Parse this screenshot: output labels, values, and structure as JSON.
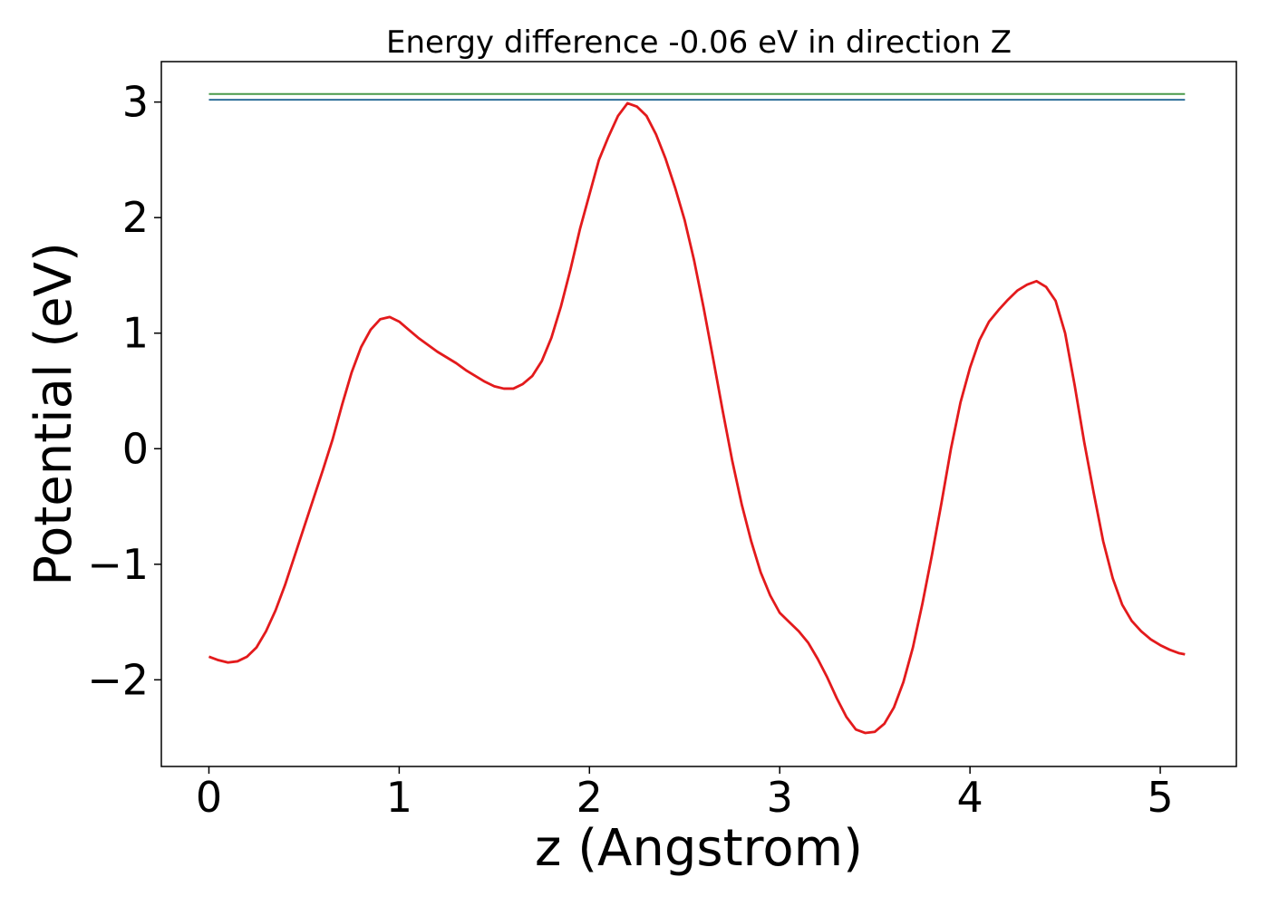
{
  "chart_data": {
    "type": "line",
    "title": "Energy difference -0.06 eV in direction Z",
    "xlabel": "z (Angstrom)",
    "ylabel": "Potential (eV)",
    "xlim": [
      -0.25,
      5.4
    ],
    "ylim": [
      -2.75,
      3.35
    ],
    "xticks": [
      0,
      1,
      2,
      3,
      4,
      5
    ],
    "yticks": [
      -2,
      -1,
      0,
      1,
      2,
      3
    ],
    "ytick_labels": [
      "−2",
      "−1",
      "0",
      "1",
      "2",
      "3"
    ],
    "xtick_labels": [
      "0",
      "1",
      "2",
      "3",
      "4",
      "5"
    ],
    "grid": false,
    "series": [
      {
        "color": "#e31a1c",
        "x": [
          0.0,
          0.05,
          0.1,
          0.15,
          0.2,
          0.25,
          0.3,
          0.35,
          0.4,
          0.45,
          0.5,
          0.55,
          0.6,
          0.65,
          0.7,
          0.75,
          0.8,
          0.85,
          0.9,
          0.95,
          1.0,
          1.05,
          1.1,
          1.15,
          1.2,
          1.25,
          1.3,
          1.35,
          1.4,
          1.45,
          1.5,
          1.55,
          1.6,
          1.65,
          1.7,
          1.75,
          1.8,
          1.85,
          1.9,
          1.95,
          2.0,
          2.05,
          2.1,
          2.15,
          2.2,
          2.25,
          2.3,
          2.35,
          2.4,
          2.45,
          2.5,
          2.55,
          2.6,
          2.65,
          2.7,
          2.75,
          2.8,
          2.85,
          2.9,
          2.95,
          3.0,
          3.05,
          3.1,
          3.15,
          3.2,
          3.25,
          3.3,
          3.35,
          3.4,
          3.45,
          3.5,
          3.55,
          3.6,
          3.65,
          3.7,
          3.75,
          3.8,
          3.85,
          3.9,
          3.95,
          4.0,
          4.05,
          4.1,
          4.15,
          4.2,
          4.25,
          4.3,
          4.35,
          4.4,
          4.45,
          4.5,
          4.55,
          4.6,
          4.65,
          4.7,
          4.75,
          4.8,
          4.85,
          4.9,
          4.95,
          5.0,
          5.05,
          5.1,
          5.13
        ],
        "y": [
          -1.8,
          -1.83,
          -1.85,
          -1.84,
          -1.8,
          -1.72,
          -1.58,
          -1.4,
          -1.18,
          -0.93,
          -0.68,
          -0.43,
          -0.18,
          0.08,
          0.38,
          0.66,
          0.88,
          1.03,
          1.12,
          1.14,
          1.1,
          1.03,
          0.96,
          0.9,
          0.84,
          0.79,
          0.74,
          0.68,
          0.63,
          0.58,
          0.54,
          0.52,
          0.52,
          0.56,
          0.63,
          0.76,
          0.96,
          1.23,
          1.55,
          1.9,
          2.2,
          2.5,
          2.7,
          2.88,
          2.99,
          2.96,
          2.88,
          2.72,
          2.51,
          2.26,
          1.98,
          1.63,
          1.22,
          0.78,
          0.33,
          -0.1,
          -0.48,
          -0.8,
          -1.07,
          -1.27,
          -1.42,
          -1.5,
          -1.58,
          -1.68,
          -1.82,
          -1.98,
          -2.16,
          -2.32,
          -2.43,
          -2.46,
          -2.45,
          -2.38,
          -2.24,
          -2.02,
          -1.72,
          -1.34,
          -0.92,
          -0.47,
          0.0,
          0.4,
          0.7,
          0.94,
          1.1,
          1.2,
          1.29,
          1.37,
          1.42,
          1.45,
          1.4,
          1.28,
          1.0,
          0.55,
          0.06,
          -0.38,
          -0.8,
          -1.12,
          -1.35,
          -1.49,
          -1.58,
          -1.65,
          -1.7,
          -1.74,
          -1.77,
          -1.78
        ]
      },
      {
        "color": "#4a9a4a",
        "x": [
          0.0,
          5.13
        ],
        "y": [
          3.07,
          3.07
        ]
      },
      {
        "color": "#2f6f99",
        "x": [
          0.0,
          5.13
        ],
        "y": [
          3.02,
          3.02
        ]
      }
    ]
  }
}
